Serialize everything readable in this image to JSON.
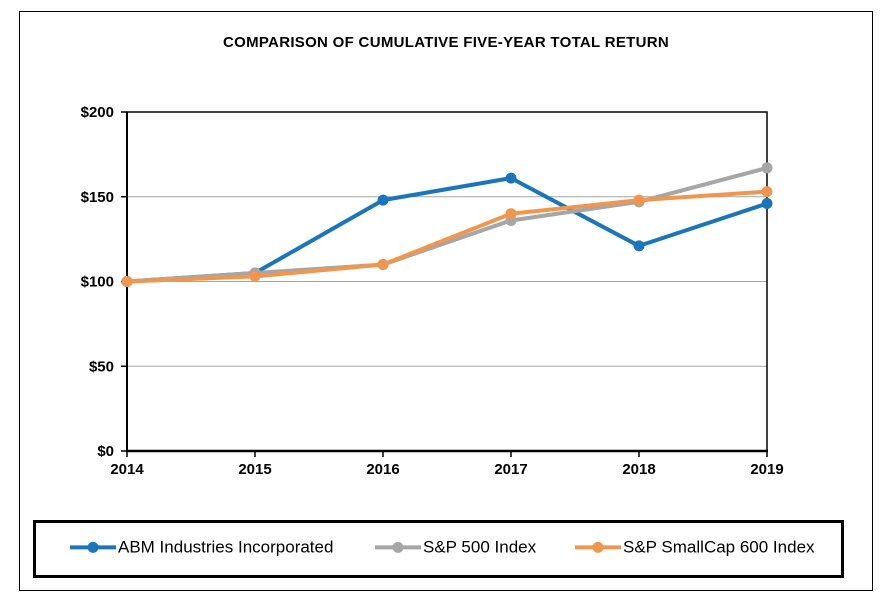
{
  "chart_data": {
    "type": "line",
    "title": "COMPARISON OF CUMULATIVE FIVE-YEAR TOTAL RETURN",
    "categories": [
      "2014",
      "2015",
      "2016",
      "2017",
      "2018",
      "2019"
    ],
    "series": [
      {
        "name": "ABM Industries Incorporated",
        "color": "#1B75BC",
        "values": [
          100,
          105,
          148,
          161,
          121,
          146
        ]
      },
      {
        "name": "S&P 500 Index",
        "color": "#A6A6A6",
        "values": [
          100,
          105,
          110,
          136,
          147,
          167
        ]
      },
      {
        "name": "S&P SmallCap 600 Index",
        "color": "#F0964F",
        "values": [
          100,
          103,
          110,
          140,
          148,
          153
        ]
      }
    ],
    "xlabel": "",
    "ylabel": "",
    "ylim": [
      0,
      200
    ],
    "ytick_step": 50,
    "ytick_labels": [
      "$0",
      "$50",
      "$100",
      "$150",
      "$200"
    ],
    "grid": "horizontal",
    "legend_position": "bottom",
    "axis_color": "#000000",
    "gridline_color": "#A6A6A6"
  }
}
